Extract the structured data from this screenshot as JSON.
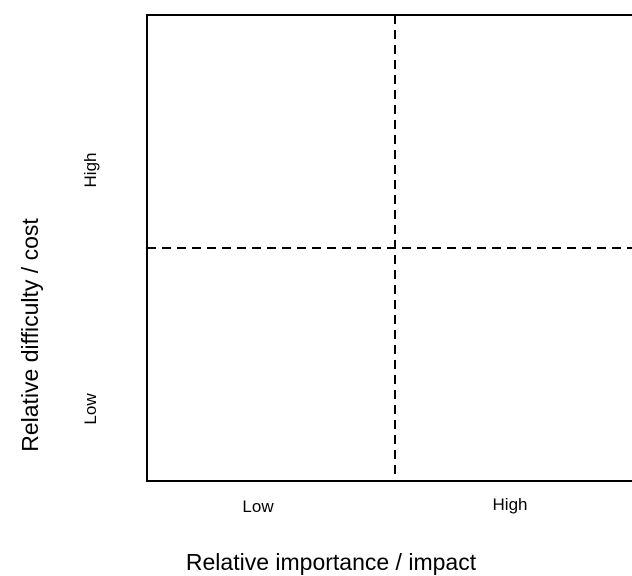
{
  "diagram": {
    "type": "2x2-matrix",
    "x_axis": {
      "label": "Relative importance / impact",
      "low_label": "Low",
      "high_label": "High"
    },
    "y_axis": {
      "label": "Relative difficulty / cost",
      "low_label": "Low",
      "high_label": "High"
    },
    "colors": {
      "line": "#000000",
      "background": "#ffffff"
    }
  }
}
